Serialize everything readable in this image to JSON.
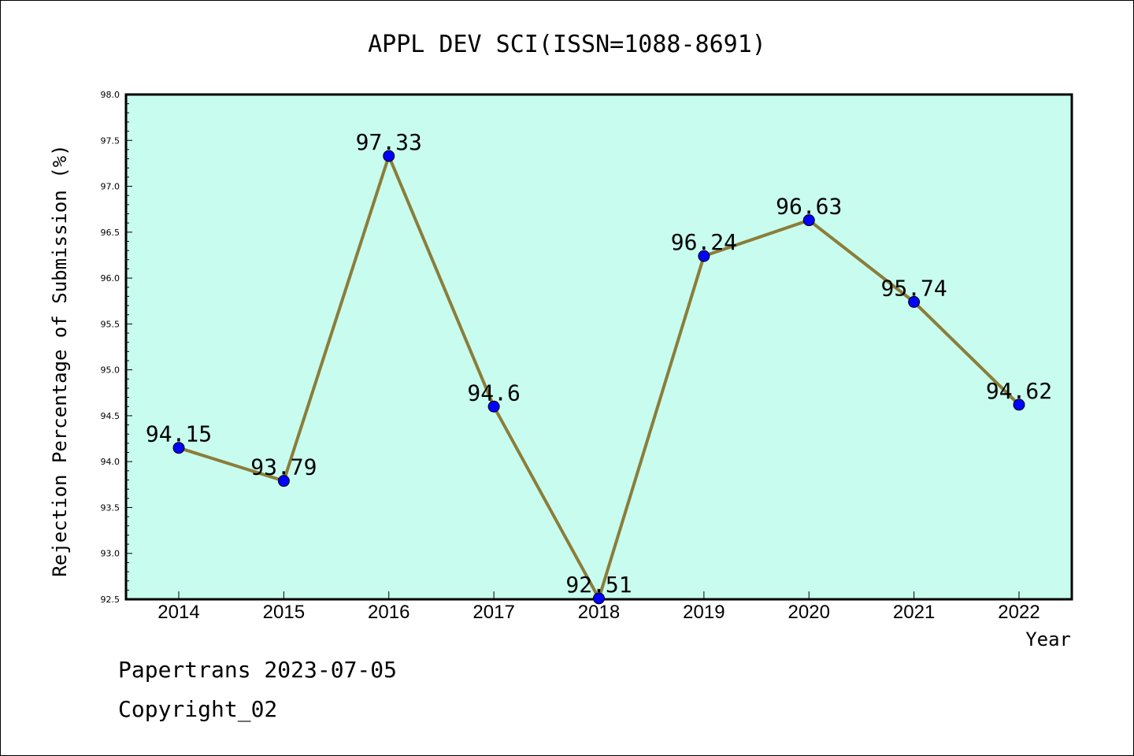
{
  "chart_data": {
    "type": "line",
    "title": "APPL DEV SCI(ISSN=1088-8691)",
    "xlabel": "Year",
    "ylabel": "Rejection Percentage of Submission (%)",
    "categories": [
      "2014",
      "2015",
      "2016",
      "2017",
      "2018",
      "2019",
      "2020",
      "2021",
      "2022"
    ],
    "values": [
      94.15,
      93.79,
      97.33,
      94.6,
      92.51,
      96.24,
      96.63,
      95.74,
      94.62
    ],
    "data_labels": [
      "94.15",
      "93.79",
      "97.33",
      "94.6",
      "92.51",
      "96.24",
      "96.63",
      "95.74",
      "94.62"
    ],
    "ylim": [
      92.5,
      98.0
    ],
    "yticks": [
      "92.5",
      "93.0",
      "93.5",
      "94.0",
      "94.5",
      "95.0",
      "95.5",
      "96.0",
      "96.5",
      "97.0",
      "97.5",
      "98.0"
    ],
    "grid": false,
    "colors": {
      "plot_background": "#c8fcee",
      "line": "#8b7d3a",
      "marker": "#0000ff"
    }
  },
  "footer": {
    "line1": "Papertrans 2023-07-05",
    "line2": "Copyright_02"
  }
}
